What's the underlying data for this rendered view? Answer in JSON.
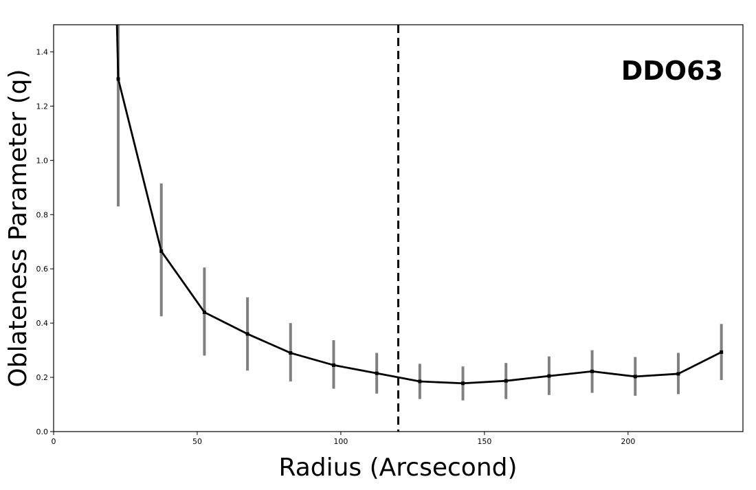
{
  "chart_data": {
    "type": "line",
    "xlabel": "Radius (Arcsecond)",
    "ylabel": "Oblateness Parameter (q)",
    "annotation": "DDO63",
    "xlim": [
      0,
      240
    ],
    "ylim": [
      0.0,
      1.5
    ],
    "xticks": [
      0,
      50,
      100,
      150,
      200
    ],
    "yticks": [
      0.0,
      0.2,
      0.4,
      0.6,
      0.8,
      1.0,
      1.2,
      1.4
    ],
    "xtick_labels": [
      "0",
      "50",
      "100",
      "150",
      "200"
    ],
    "ytick_labels": [
      "0.0",
      "0.2",
      "0.4",
      "0.6",
      "0.8",
      "1.0",
      "1.2",
      "1.4"
    ],
    "grid": false,
    "vline": {
      "x": 120,
      "style": "dashed",
      "color": "#000000"
    },
    "series": [
      {
        "x": [
          22.5,
          37.5,
          52.5,
          67.5,
          82.5,
          97.5,
          112.5,
          127.5,
          142.5,
          157.5,
          172.5,
          187.5,
          202.5,
          217.5,
          232.5
        ],
        "y": [
          1.3,
          0.665,
          0.44,
          0.36,
          0.29,
          0.245,
          0.215,
          0.185,
          0.178,
          0.187,
          0.205,
          0.222,
          0.203,
          0.213,
          0.293
        ],
        "yerr_low": [
          0.83,
          0.425,
          0.28,
          0.225,
          0.185,
          0.158,
          0.14,
          0.12,
          0.115,
          0.12,
          0.135,
          0.143,
          0.132,
          0.138,
          0.19
        ],
        "yerr_high": [
          1.5,
          0.915,
          0.605,
          0.495,
          0.4,
          0.337,
          0.29,
          0.25,
          0.24,
          0.253,
          0.277,
          0.3,
          0.275,
          0.29,
          0.397
        ],
        "leading_point": {
          "x": 22.0,
          "y": 1.52
        },
        "line_color": "#000000",
        "errorbar_color": "#808080"
      }
    ]
  }
}
